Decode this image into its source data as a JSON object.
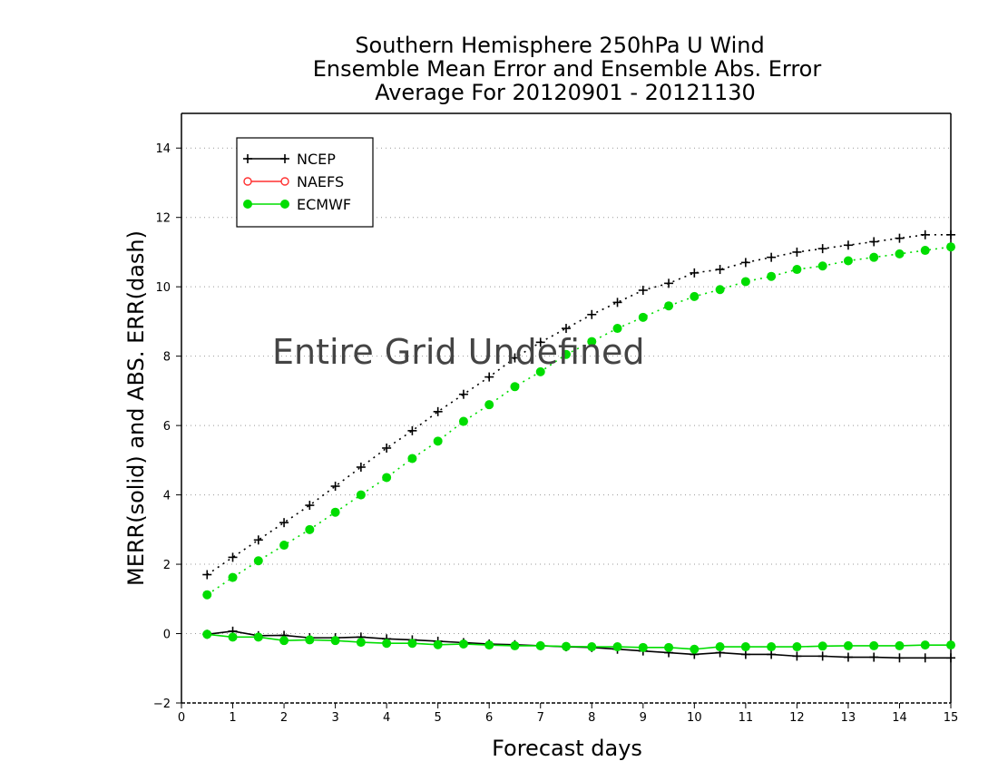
{
  "chart_data": {
    "type": "line",
    "title_lines": [
      "Southern Hemisphere 250hPa U Wind",
      "Ensemble Mean Error and Ensemble Abs. Error",
      "Average For 20120901 - 20121130"
    ],
    "xlabel": "Forecast days",
    "ylabel": "MERR(solid) and ABS. ERR(dash)",
    "annotation": "Entire Grid Undefined",
    "xlim": [
      0,
      15
    ],
    "ylim": [
      -2,
      15
    ],
    "xticks": [
      "0",
      "1",
      "2",
      "3",
      "4",
      "5",
      "6",
      "7",
      "8",
      "9",
      "10",
      "11",
      "12",
      "13",
      "14",
      "15"
    ],
    "yticks": [
      "−2",
      "0",
      "2",
      "4",
      "6",
      "8",
      "10",
      "12",
      "14"
    ],
    "ytick_values": [
      -2,
      0,
      2,
      4,
      6,
      8,
      10,
      12,
      14
    ],
    "grid": true,
    "legend_position": "top-left",
    "x": [
      0.5,
      1,
      1.5,
      2,
      2.5,
      3,
      3.5,
      4,
      4.5,
      5,
      5.5,
      6,
      6.5,
      7,
      7.5,
      8,
      8.5,
      9,
      9.5,
      10,
      10.5,
      11,
      11.5,
      12,
      12.5,
      13,
      13.5,
      14,
      14.5,
      15
    ],
    "series": [
      {
        "name": "NCEP",
        "color": "#000000",
        "marker": "plus",
        "abs_err": [
          1.7,
          2.2,
          2.7,
          3.2,
          3.7,
          4.25,
          4.8,
          5.35,
          5.85,
          6.4,
          6.9,
          7.4,
          7.95,
          8.4,
          8.8,
          9.2,
          9.55,
          9.9,
          10.1,
          10.4,
          10.5,
          10.7,
          10.85,
          11.0,
          11.1,
          11.2,
          11.3,
          11.4,
          11.5,
          11.5
        ],
        "mean_err": [
          -0.02,
          0.07,
          -0.06,
          -0.05,
          -0.12,
          -0.12,
          -0.1,
          -0.15,
          -0.18,
          -0.22,
          -0.26,
          -0.3,
          -0.32,
          -0.35,
          -0.38,
          -0.4,
          -0.45,
          -0.5,
          -0.55,
          -0.6,
          -0.55,
          -0.6,
          -0.6,
          -0.65,
          -0.65,
          -0.68,
          -0.68,
          -0.7,
          -0.7,
          -0.7
        ]
      },
      {
        "name": "NAEFS",
        "color": "#ff3030",
        "marker": "open-circle",
        "abs_err": [],
        "mean_err": []
      },
      {
        "name": "ECMWF",
        "color": "#00dd00",
        "marker": "filled-circle",
        "abs_err": [
          1.12,
          1.62,
          2.1,
          2.55,
          3.0,
          3.5,
          4.0,
          4.5,
          5.05,
          5.55,
          6.12,
          6.6,
          7.12,
          7.55,
          8.05,
          8.42,
          8.8,
          9.12,
          9.45,
          9.72,
          9.92,
          10.15,
          10.3,
          10.5,
          10.6,
          10.75,
          10.85,
          10.95,
          11.05,
          11.15
        ],
        "mean_err": [
          -0.02,
          -0.1,
          -0.1,
          -0.2,
          -0.18,
          -0.2,
          -0.25,
          -0.28,
          -0.28,
          -0.32,
          -0.3,
          -0.33,
          -0.35,
          -0.35,
          -0.37,
          -0.38,
          -0.38,
          -0.4,
          -0.4,
          -0.45,
          -0.38,
          -0.38,
          -0.38,
          -0.38,
          -0.36,
          -0.35,
          -0.35,
          -0.35,
          -0.33,
          -0.33
        ]
      }
    ]
  }
}
